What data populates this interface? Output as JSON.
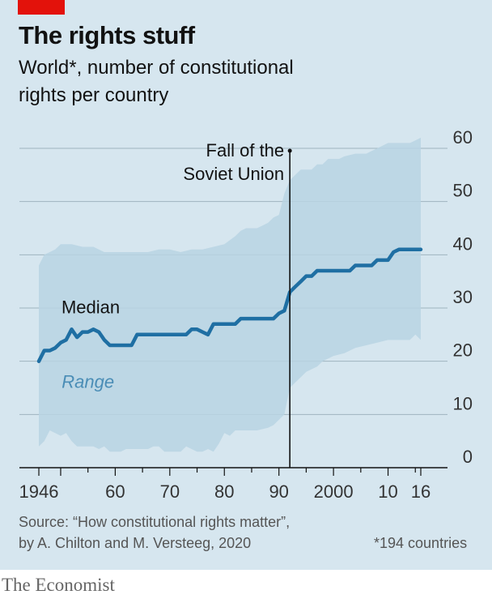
{
  "header": {
    "title": "The rights stuff",
    "subtitle_line1": "World*, number of constitutional",
    "subtitle_line2": "rights per country"
  },
  "footer": {
    "source_line1": "Source: “How constitutional rights matter”,",
    "source_line2": "by A. Chilton and M. Versteeg, 2020",
    "footnote": "*194 countries",
    "brand": "The Economist"
  },
  "colors": {
    "background": "#d6e6ef",
    "median_line": "#1f6fa3",
    "range_fill": "#b9d3e3",
    "accent_red": "#e3120b"
  },
  "chart_data": {
    "type": "area",
    "xlim": [
      1946,
      2016
    ],
    "ylim": [
      0,
      60
    ],
    "yaxis_position": "right",
    "grid": true,
    "y_ticks": [
      {
        "value": 0,
        "label": "0"
      },
      {
        "value": 10,
        "label": "10"
      },
      {
        "value": 20,
        "label": "20"
      },
      {
        "value": 30,
        "label": "30"
      },
      {
        "value": 40,
        "label": "40"
      },
      {
        "value": 50,
        "label": "50"
      },
      {
        "value": 60,
        "label": "60"
      }
    ],
    "x_ticks": [
      {
        "value": 1946,
        "label": "1946"
      },
      {
        "value": 1960,
        "label": "60"
      },
      {
        "value": 1970,
        "label": "70"
      },
      {
        "value": 1980,
        "label": "80"
      },
      {
        "value": 1990,
        "label": "90"
      },
      {
        "value": 2000,
        "label": "2000"
      },
      {
        "value": 2010,
        "label": "10"
      },
      {
        "value": 2016,
        "label": "16"
      }
    ],
    "series": [
      {
        "name": "Median",
        "points": [
          [
            1946,
            20
          ],
          [
            1947,
            22
          ],
          [
            1948,
            22
          ],
          [
            1949,
            22.5
          ],
          [
            1950,
            23.5
          ],
          [
            1951,
            24
          ],
          [
            1952,
            26
          ],
          [
            1953,
            24.5
          ],
          [
            1954,
            25.5
          ],
          [
            1955,
            25.5
          ],
          [
            1956,
            26
          ],
          [
            1957,
            25.5
          ],
          [
            1958,
            24
          ],
          [
            1959,
            23
          ],
          [
            1960,
            23
          ],
          [
            1961,
            23
          ],
          [
            1962,
            23
          ],
          [
            1963,
            23
          ],
          [
            1964,
            25
          ],
          [
            1965,
            25
          ],
          [
            1966,
            25
          ],
          [
            1967,
            25
          ],
          [
            1968,
            25
          ],
          [
            1969,
            25
          ],
          [
            1970,
            25
          ],
          [
            1971,
            25
          ],
          [
            1972,
            25
          ],
          [
            1973,
            25
          ],
          [
            1974,
            26
          ],
          [
            1975,
            26
          ],
          [
            1976,
            25.5
          ],
          [
            1977,
            25
          ],
          [
            1978,
            27
          ],
          [
            1979,
            27
          ],
          [
            1980,
            27
          ],
          [
            1981,
            27
          ],
          [
            1982,
            27
          ],
          [
            1983,
            28
          ],
          [
            1984,
            28
          ],
          [
            1985,
            28
          ],
          [
            1986,
            28
          ],
          [
            1987,
            28
          ],
          [
            1988,
            28
          ],
          [
            1989,
            28
          ],
          [
            1990,
            29
          ],
          [
            1991,
            29.5
          ],
          [
            1992,
            33
          ],
          [
            1993,
            34
          ],
          [
            1994,
            35
          ],
          [
            1995,
            36
          ],
          [
            1996,
            36
          ],
          [
            1997,
            37
          ],
          [
            1998,
            37
          ],
          [
            1999,
            37
          ],
          [
            2000,
            37
          ],
          [
            2001,
            37
          ],
          [
            2002,
            37
          ],
          [
            2003,
            37
          ],
          [
            2004,
            38
          ],
          [
            2005,
            38
          ],
          [
            2006,
            38
          ],
          [
            2007,
            38
          ],
          [
            2008,
            39
          ],
          [
            2009,
            39
          ],
          [
            2010,
            39
          ],
          [
            2011,
            40.5
          ],
          [
            2012,
            41
          ],
          [
            2013,
            41
          ],
          [
            2014,
            41
          ],
          [
            2015,
            41
          ],
          [
            2016,
            41
          ]
        ]
      },
      {
        "name": "Range",
        "upper": [
          [
            1946,
            38
          ],
          [
            1947,
            40
          ],
          [
            1948,
            40.5
          ],
          [
            1949,
            41
          ],
          [
            1950,
            42
          ],
          [
            1952,
            42
          ],
          [
            1954,
            41.5
          ],
          [
            1956,
            41.5
          ],
          [
            1958,
            40.5
          ],
          [
            1960,
            40.5
          ],
          [
            1962,
            40.5
          ],
          [
            1964,
            40.5
          ],
          [
            1966,
            40.5
          ],
          [
            1968,
            41
          ],
          [
            1970,
            41
          ],
          [
            1972,
            40.5
          ],
          [
            1974,
            41
          ],
          [
            1976,
            41
          ],
          [
            1978,
            41.5
          ],
          [
            1980,
            42
          ],
          [
            1982,
            43.5
          ],
          [
            1983,
            44.5
          ],
          [
            1984,
            45
          ],
          [
            1986,
            45
          ],
          [
            1987,
            45.5
          ],
          [
            1988,
            46
          ],
          [
            1989,
            47
          ],
          [
            1990,
            47.5
          ],
          [
            1991,
            51.5
          ],
          [
            1992,
            54
          ],
          [
            1993,
            55
          ],
          [
            1994,
            56
          ],
          [
            1996,
            56
          ],
          [
            1997,
            57
          ],
          [
            1998,
            57
          ],
          [
            1999,
            58
          ],
          [
            2001,
            58
          ],
          [
            2002,
            58.5
          ],
          [
            2004,
            59
          ],
          [
            2006,
            59
          ],
          [
            2007,
            59.5
          ],
          [
            2008,
            60
          ],
          [
            2009,
            60.5
          ],
          [
            2010,
            61
          ],
          [
            2012,
            61
          ],
          [
            2014,
            61
          ],
          [
            2015,
            61.5
          ],
          [
            2016,
            62
          ]
        ],
        "lower": [
          [
            1946,
            4
          ],
          [
            1947,
            5
          ],
          [
            1948,
            7
          ],
          [
            1949,
            6.5
          ],
          [
            1950,
            6
          ],
          [
            1951,
            6.5
          ],
          [
            1952,
            5
          ],
          [
            1953,
            4
          ],
          [
            1954,
            4
          ],
          [
            1956,
            4
          ],
          [
            1957,
            3.5
          ],
          [
            1958,
            4
          ],
          [
            1959,
            3
          ],
          [
            1960,
            3
          ],
          [
            1961,
            3
          ],
          [
            1962,
            3.5
          ],
          [
            1963,
            3.5
          ],
          [
            1964,
            3.5
          ],
          [
            1966,
            3.5
          ],
          [
            1967,
            4
          ],
          [
            1968,
            4
          ],
          [
            1969,
            3
          ],
          [
            1970,
            3
          ],
          [
            1972,
            3
          ],
          [
            1973,
            4
          ],
          [
            1974,
            3.5
          ],
          [
            1975,
            3
          ],
          [
            1976,
            3
          ],
          [
            1977,
            3.5
          ],
          [
            1978,
            3
          ],
          [
            1979,
            4.5
          ],
          [
            1980,
            6.5
          ],
          [
            1981,
            6
          ],
          [
            1982,
            7
          ],
          [
            1984,
            7
          ],
          [
            1986,
            7
          ],
          [
            1988,
            7.5
          ],
          [
            1989,
            8
          ],
          [
            1990,
            9
          ],
          [
            1991,
            10
          ],
          [
            1992,
            15
          ],
          [
            1993,
            16
          ],
          [
            1994,
            17
          ],
          [
            1995,
            18
          ],
          [
            1996,
            18.5
          ],
          [
            1997,
            19
          ],
          [
            1998,
            20
          ],
          [
            2000,
            21
          ],
          [
            2002,
            21.5
          ],
          [
            2003,
            22
          ],
          [
            2004,
            22.5
          ],
          [
            2006,
            23
          ],
          [
            2008,
            23.5
          ],
          [
            2010,
            24
          ],
          [
            2012,
            24
          ],
          [
            2014,
            24
          ],
          [
            2015,
            25
          ],
          [
            2016,
            24
          ]
        ]
      }
    ],
    "annotations": [
      {
        "text": "Median",
        "x": 1955.5,
        "y": 29
      },
      {
        "text": "Range",
        "x": 1955,
        "y": 15,
        "style": "italic"
      },
      {
        "text_lines": [
          "Fall of the",
          "Soviet Union"
        ],
        "x": 1992,
        "type": "vertical-line"
      }
    ]
  }
}
